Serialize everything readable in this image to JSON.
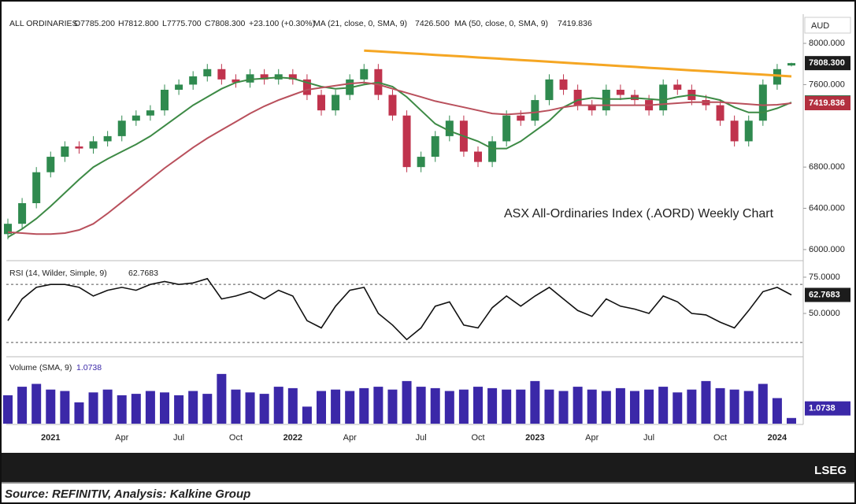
{
  "header": {
    "name": "ALL ORDINARIES",
    "open": "O7785.200",
    "high": "H7812.800",
    "low": "L7775.700",
    "close": "C7808.300",
    "change": "+23.100 (+0.30%)",
    "ma21_label": "MA (21, close, 0, SMA, 9)",
    "ma21_value": "7426.500",
    "ma50_label": "MA (50, close, 0, SMA, 9)",
    "ma50_value": "7419.836",
    "currency": "AUD"
  },
  "chart_data": [
    {
      "type": "candlestick",
      "annotation": "ASX All-Ordinaries Index (.AORD) Weekly Chart",
      "up_color": "#2f8a4f",
      "down_color": "#c0334d",
      "categories": [
        null,
        null,
        null,
        "2021",
        null,
        null,
        null,
        null,
        "Apr",
        null,
        null,
        null,
        "Jul",
        null,
        null,
        null,
        "Oct",
        null,
        null,
        null,
        "2022",
        null,
        null,
        null,
        "Apr",
        null,
        null,
        null,
        null,
        "Jul",
        null,
        null,
        null,
        "Oct",
        null,
        null,
        null,
        "2023",
        null,
        null,
        null,
        "Apr",
        null,
        null,
        null,
        "Jul",
        null,
        null,
        null,
        null,
        "Oct",
        null,
        null,
        null,
        "2024",
        null
      ],
      "open": [
        6150,
        6250,
        6450,
        6750,
        6900,
        7000,
        6980,
        7050,
        7100,
        7250,
        7300,
        7350,
        7550,
        7600,
        7680,
        7750,
        7650,
        7620,
        7700,
        7650,
        7700,
        7650,
        7500,
        7350,
        7500,
        7650,
        7750,
        7500,
        7300,
        6800,
        6900,
        7100,
        7250,
        6950,
        6850,
        7050,
        7300,
        7250,
        7450,
        7650,
        7550,
        7400,
        7350,
        7550,
        7500,
        7450,
        7350,
        7600,
        7550,
        7450,
        7400,
        7250,
        7050,
        7250,
        7600,
        7785.2
      ],
      "high": [
        6300,
        6500,
        6800,
        6950,
        7050,
        7050,
        7100,
        7150,
        7300,
        7350,
        7400,
        7600,
        7650,
        7730,
        7800,
        7800,
        7700,
        7750,
        7750,
        7750,
        7750,
        7700,
        7550,
        7550,
        7700,
        7800,
        7800,
        7550,
        7350,
        6950,
        7150,
        7300,
        7300,
        7000,
        7100,
        7350,
        7350,
        7500,
        7700,
        7700,
        7600,
        7450,
        7600,
        7600,
        7550,
        7500,
        7650,
        7650,
        7600,
        7500,
        7450,
        7300,
        7300,
        7650,
        7800,
        7812.8
      ],
      "low": [
        6100,
        6200,
        6400,
        6700,
        6850,
        6930,
        6930,
        7000,
        7050,
        7200,
        7250,
        7300,
        7500,
        7550,
        7630,
        7600,
        7570,
        7570,
        7600,
        7600,
        7600,
        7450,
        7300,
        7300,
        7450,
        7600,
        7450,
        7250,
        6750,
        6750,
        6850,
        7050,
        6900,
        6800,
        6800,
        7000,
        7200,
        7200,
        7400,
        7500,
        7350,
        7300,
        7300,
        7450,
        7400,
        7300,
        7300,
        7500,
        7400,
        7350,
        7200,
        7000,
        7000,
        7200,
        7550,
        7775.7
      ],
      "close": [
        6250,
        6450,
        6750,
        6900,
        7000,
        6980,
        7050,
        7100,
        7250,
        7300,
        7350,
        7550,
        7600,
        7680,
        7750,
        7650,
        7620,
        7700,
        7650,
        7700,
        7650,
        7500,
        7350,
        7500,
        7650,
        7750,
        7500,
        7300,
        6800,
        6900,
        7100,
        7250,
        6950,
        6850,
        7050,
        7300,
        7250,
        7450,
        7650,
        7550,
        7400,
        7350,
        7550,
        7500,
        7450,
        7350,
        7600,
        7550,
        7450,
        7400,
        7250,
        7050,
        7250,
        7600,
        7750,
        7808.3
      ],
      "close_label": {
        "text": "7808.300",
        "color": "#1c1c1c"
      },
      "series": [
        {
          "name": "MA 21",
          "color": "#3d8a45",
          "label_color": "#1f5f35",
          "last_label": "7426.500",
          "values": [
            6120,
            6200,
            6300,
            6420,
            6550,
            6680,
            6800,
            6880,
            6950,
            7020,
            7100,
            7200,
            7300,
            7400,
            7480,
            7560,
            7620,
            7650,
            7660,
            7670,
            7660,
            7620,
            7580,
            7560,
            7570,
            7600,
            7620,
            7580,
            7480,
            7350,
            7220,
            7150,
            7100,
            7050,
            6980,
            6980,
            7050,
            7150,
            7250,
            7380,
            7450,
            7470,
            7460,
            7460,
            7470,
            7460,
            7450,
            7480,
            7500,
            7480,
            7450,
            7380,
            7330,
            7330,
            7370,
            7426.5
          ]
        },
        {
          "name": "MA 50",
          "color": "#b9505c",
          "label_color": "#b3303f",
          "last_label": "7419.836",
          "values": [
            6170,
            6160,
            6150,
            6150,
            6160,
            6190,
            6250,
            6350,
            6460,
            6570,
            6680,
            6790,
            6890,
            6990,
            7080,
            7160,
            7240,
            7320,
            7390,
            7450,
            7500,
            7550,
            7570,
            7590,
            7610,
            7620,
            7600,
            7560,
            7520,
            7480,
            7440,
            7410,
            7380,
            7350,
            7320,
            7310,
            7320,
            7330,
            7350,
            7380,
            7400,
            7400,
            7400,
            7400,
            7400,
            7400,
            7410,
            7420,
            7430,
            7430,
            7430,
            7420,
            7410,
            7400,
            7405,
            7419.836
          ]
        },
        {
          "name": "Trendline",
          "color": "#f5a623",
          "values": [
            null,
            null,
            null,
            null,
            null,
            null,
            null,
            null,
            null,
            null,
            null,
            null,
            null,
            null,
            null,
            null,
            null,
            null,
            null,
            null,
            null,
            null,
            null,
            null,
            null,
            7930,
            7922,
            7913,
            7905,
            7897,
            7888,
            7880,
            7872,
            7863,
            7855,
            7847,
            7838,
            7830,
            7822,
            7813,
            7805,
            7797,
            7788,
            7780,
            7772,
            7763,
            7755,
            7747,
            7738,
            7730,
            7722,
            7713,
            7705,
            7697,
            7688,
            7680
          ]
        }
      ],
      "ylim": [
        5900,
        8115
      ],
      "yticks": [
        {
          "value": 6000,
          "label": "6000.000"
        },
        {
          "value": 6400,
          "label": "6400.000"
        },
        {
          "value": 6800,
          "label": "6800.000"
        },
        {
          "value": 7600,
          "label": "7600.000"
        },
        {
          "value": 8000,
          "label": "8000.000"
        }
      ]
    },
    {
      "type": "line",
      "title": "RSI (14, Wilder, Simple, 9)",
      "title_value": "62.7683",
      "color": "#111111",
      "last_label": "62.7683",
      "values": [
        45,
        60,
        68,
        70,
        70,
        68,
        62,
        66,
        68,
        66,
        70,
        72,
        70,
        71,
        74,
        60,
        62,
        65,
        60,
        66,
        62,
        45,
        40,
        55,
        66,
        68,
        50,
        42,
        32,
        40,
        55,
        58,
        42,
        40,
        54,
        62,
        55,
        62,
        68,
        60,
        52,
        48,
        60,
        55,
        53,
        50,
        62,
        58,
        50,
        49,
        44,
        40,
        52,
        65,
        68,
        62.7683
      ],
      "bands": [
        70,
        30
      ],
      "ylim": [
        20.7,
        85.3
      ],
      "yticks": [
        {
          "value": 50,
          "label": "50.0000"
        },
        {
          "value": 75,
          "label": "75.0000"
        }
      ]
    },
    {
      "type": "bar",
      "title": "Volume (SMA, 9)",
      "title_value": "1.0738",
      "color": "#3b28a8",
      "sma": {
        "value": 1.0738,
        "label": "1.0738"
      },
      "values": [
        2.0,
        2.6,
        2.8,
        2.4,
        2.3,
        1.5,
        2.2,
        2.4,
        2.0,
        2.1,
        2.3,
        2.2,
        2.0,
        2.3,
        2.1,
        3.5,
        2.4,
        2.2,
        2.1,
        2.6,
        2.5,
        1.2,
        2.3,
        2.4,
        2.3,
        2.5,
        2.6,
        2.4,
        3.0,
        2.6,
        2.5,
        2.3,
        2.4,
        2.6,
        2.5,
        2.4,
        2.4,
        3.0,
        2.4,
        2.3,
        2.6,
        2.4,
        2.3,
        2.5,
        2.3,
        2.4,
        2.6,
        2.2,
        2.4,
        3.0,
        2.5,
        2.4,
        2.3,
        2.8,
        1.8,
        0.4
      ],
      "ylim": [
        0,
        4.6
      ]
    }
  ],
  "footer": {
    "brand": "LSEG",
    "source": "Source: REFINITIV, Analysis: Kalkine Group"
  }
}
